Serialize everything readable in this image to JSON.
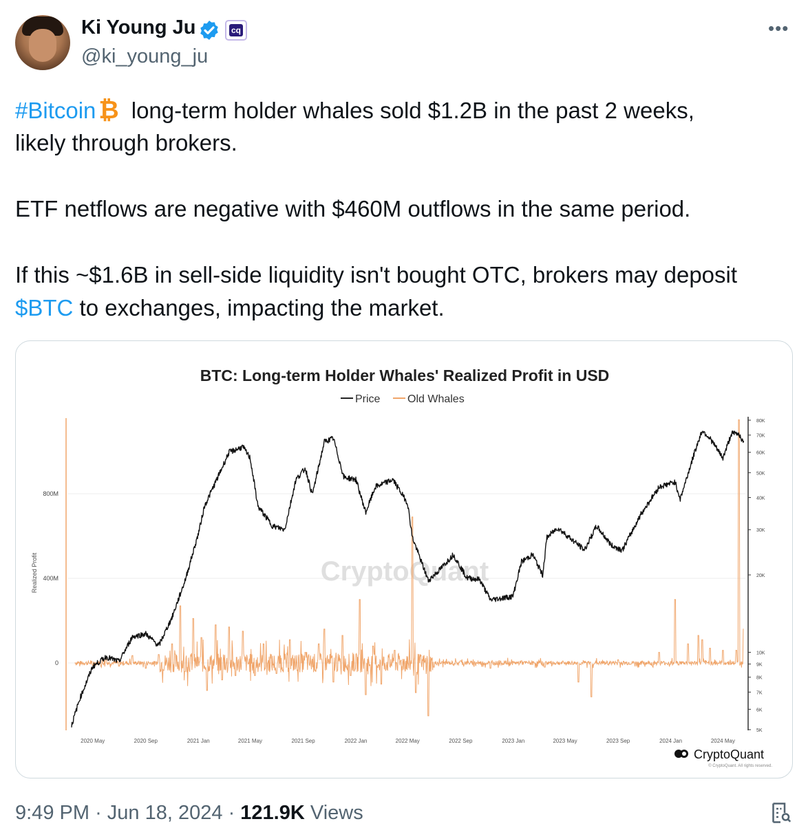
{
  "author": {
    "name": "Ki Young Ju",
    "handle": "@ki_young_ju",
    "affiliation_badge": "cq"
  },
  "more_icon": "•••",
  "tweet": {
    "hashtag": "#Bitcoin",
    "emoji": "₿",
    "line1_rest": "long-term holder whales sold $1.2B in the past 2 weeks,",
    "line2": "likely through brokers.",
    "line3": "ETF netflows are negative with $460M outflows in the same period.",
    "line4": "If this ~$1.6B in sell-side liquidity isn't bought OTC, brokers may deposit",
    "cashtag": "$BTC",
    "line5_rest": " to exchanges, impacting the market."
  },
  "chart_data": {
    "type": "line",
    "title": "BTC: Long-term Holder Whales' Realized Profit in USD",
    "legend": [
      "Price",
      "Old Whales"
    ],
    "ylabel": "Realized Profit",
    "left_axis_ticks": [
      "800M",
      "400M",
      "0"
    ],
    "right_axis_ticks": [
      "80K",
      "70K",
      "60K",
      "50K",
      "40K",
      "30K",
      "20K",
      "10K",
      "9K",
      "8K",
      "7K",
      "6K",
      "5K"
    ],
    "x_ticks": [
      "2020 May",
      "2020 Sep",
      "2021 Jan",
      "2021 May",
      "2021 Sep",
      "2022 Jan",
      "2022 May",
      "2022 Sep",
      "2023 Jan",
      "2023 May",
      "2023 Sep",
      "2024 Jan",
      "2024 May"
    ],
    "watermark": "CryptoQuant",
    "brand": "CryptoQuant",
    "copyright": "© CryptoQuant. All rights reserved.",
    "price_series": [
      [
        "2020-03-13",
        5200
      ],
      [
        "2020-04-01",
        6600
      ],
      [
        "2020-05-01",
        8800
      ],
      [
        "2020-06-01",
        9600
      ],
      [
        "2020-07-01",
        9200
      ],
      [
        "2020-08-01",
        11500
      ],
      [
        "2020-09-01",
        11800
      ],
      [
        "2020-10-01",
        10600
      ],
      [
        "2020-11-01",
        13700
      ],
      [
        "2020-12-01",
        19000
      ],
      [
        "2021-01-01",
        29000
      ],
      [
        "2021-01-15",
        37000
      ],
      [
        "2021-02-15",
        48000
      ],
      [
        "2021-03-13",
        60000
      ],
      [
        "2021-04-14",
        63000
      ],
      [
        "2021-05-01",
        57000
      ],
      [
        "2021-05-19",
        37000
      ],
      [
        "2021-06-22",
        31000
      ],
      [
        "2021-07-20",
        30000
      ],
      [
        "2021-08-15",
        47000
      ],
      [
        "2021-09-06",
        52000
      ],
      [
        "2021-09-22",
        41000
      ],
      [
        "2021-10-20",
        66000
      ],
      [
        "2021-11-10",
        68000
      ],
      [
        "2021-12-04",
        48000
      ],
      [
        "2022-01-01",
        47000
      ],
      [
        "2022-01-24",
        35000
      ],
      [
        "2022-02-15",
        44000
      ],
      [
        "2022-03-28",
        47000
      ],
      [
        "2022-05-01",
        38000
      ],
      [
        "2022-05-12",
        28000
      ],
      [
        "2022-06-18",
        19000
      ],
      [
        "2022-07-15",
        21000
      ],
      [
        "2022-08-15",
        24000
      ],
      [
        "2022-09-15",
        19500
      ],
      [
        "2022-10-15",
        19200
      ],
      [
        "2022-11-09",
        16000
      ],
      [
        "2022-12-31",
        16500
      ],
      [
        "2023-01-20",
        22500
      ],
      [
        "2023-02-15",
        24000
      ],
      [
        "2023-03-10",
        20000
      ],
      [
        "2023-03-20",
        28000
      ],
      [
        "2023-04-14",
        30500
      ],
      [
        "2023-06-15",
        25000
      ],
      [
        "2023-07-13",
        31000
      ],
      [
        "2023-08-17",
        26000
      ],
      [
        "2023-09-11",
        25000
      ],
      [
        "2023-10-24",
        34500
      ],
      [
        "2023-12-05",
        44000
      ],
      [
        "2024-01-11",
        46000
      ],
      [
        "2024-01-23",
        39500
      ],
      [
        "2024-02-28",
        62000
      ],
      [
        "2024-03-14",
        73000
      ],
      [
        "2024-04-01",
        68000
      ],
      [
        "2024-05-01",
        57000
      ],
      [
        "2024-05-21",
        71000
      ],
      [
        "2024-06-07",
        71000
      ],
      [
        "2024-06-18",
        65000
      ]
    ],
    "old_whales_series": [
      [
        "2020-03-20",
        0
      ],
      [
        "2020-05-01",
        -10
      ],
      [
        "2020-06-01",
        20
      ],
      [
        "2020-07-01",
        -15
      ],
      [
        "2020-08-01",
        35
      ],
      [
        "2020-09-01",
        -25
      ],
      [
        "2020-10-01",
        40
      ],
      [
        "2020-11-01",
        90
      ],
      [
        "2020-11-20",
        270
      ],
      [
        "2020-12-01",
        -40
      ],
      [
        "2020-12-20",
        210
      ],
      [
        "2021-01-08",
        120
      ],
      [
        "2021-01-21",
        -130
      ],
      [
        "2021-02-10",
        180
      ],
      [
        "2021-02-25",
        -80
      ],
      [
        "2021-03-13",
        170
      ],
      [
        "2021-03-28",
        -60
      ],
      [
        "2021-04-14",
        150
      ],
      [
        "2021-05-12",
        -60
      ],
      [
        "2021-06-01",
        90
      ],
      [
        "2021-07-01",
        -50
      ],
      [
        "2021-08-01",
        110
      ],
      [
        "2021-09-06",
        50
      ],
      [
        "2021-10-07",
        90
      ],
      [
        "2021-10-20",
        160
      ],
      [
        "2021-11-10",
        -90
      ],
      [
        "2021-12-01",
        130
      ],
      [
        "2021-12-20",
        -60
      ],
      [
        "2022-01-10",
        300
      ],
      [
        "2022-01-24",
        -150
      ],
      [
        "2022-02-10",
        80
      ],
      [
        "2022-03-01",
        -100
      ],
      [
        "2022-04-01",
        60
      ],
      [
        "2022-05-12",
        690
      ],
      [
        "2022-05-20",
        -140
      ],
      [
        "2022-06-18",
        -250
      ],
      [
        "2022-07-01",
        -20
      ],
      [
        "2022-09-01",
        10
      ],
      [
        "2022-11-09",
        -25
      ],
      [
        "2023-01-20",
        10
      ],
      [
        "2023-03-15",
        -20
      ],
      [
        "2023-06-01",
        -90
      ],
      [
        "2023-07-01",
        -160
      ],
      [
        "2023-09-01",
        15
      ],
      [
        "2023-12-05",
        50
      ],
      [
        "2024-01-11",
        300
      ],
      [
        "2024-02-10",
        90
      ],
      [
        "2024-03-05",
        130
      ],
      [
        "2024-03-14",
        110
      ],
      [
        "2024-04-01",
        70
      ],
      [
        "2024-05-01",
        60
      ],
      [
        "2024-06-01",
        60
      ],
      [
        "2024-06-07",
        1150
      ],
      [
        "2024-06-18",
        160
      ]
    ]
  },
  "footer": {
    "time": "9:49 PM",
    "separator": "·",
    "date": "Jun 18, 2024",
    "views_count": "121.9K",
    "views_label": "Views"
  }
}
